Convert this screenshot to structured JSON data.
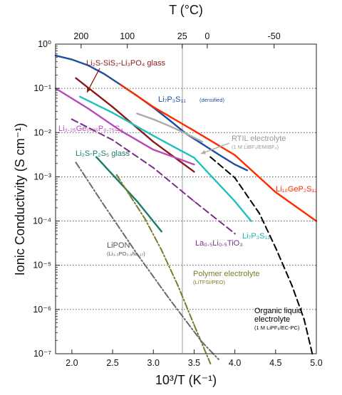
{
  "chart_data": {
    "type": "line",
    "xlabel": "10³/T (K⁻¹)",
    "ylabel": "Ionic Conductivity (S cm⁻¹)",
    "top_axis_label": "T (°C)",
    "xlim": [
      1.8,
      5.0
    ],
    "ylim_log10": [
      -7,
      0
    ],
    "y_scale": "log",
    "grid": "horizontal dotted",
    "x_ticks": [
      "2.0",
      "2.5",
      "3.0",
      "3.5",
      "4.0",
      "4.5",
      "5.0"
    ],
    "x_tick_values": [
      2.0,
      2.5,
      3.0,
      3.5,
      4.0,
      4.5,
      5.0
    ],
    "y_ticks": [
      "10⁰",
      "10⁻¹",
      "10⁻²",
      "10⁻³",
      "10⁻⁴",
      "10⁻⁵",
      "10⁻⁶",
      "10⁻⁷"
    ],
    "y_tick_exponents": [
      0,
      -1,
      -2,
      -3,
      -4,
      -5,
      -6,
      -7
    ],
    "top_ticks": [
      "200",
      "100",
      "25",
      "0",
      "-50"
    ],
    "top_tick_celsius": [
      200,
      100,
      25,
      0,
      -50
    ],
    "reference_line_x": 3.356,
    "series": [
      {
        "name": "Li₇P₃S₁₁ (densified)",
        "color": "#1f4e9e",
        "style": "solid",
        "x": [
          1.8,
          2.0,
          2.2,
          2.4,
          2.6,
          2.8,
          3.0,
          3.2,
          3.4,
          3.6,
          3.8,
          4.0,
          4.15
        ],
        "y": [
          0.55,
          0.45,
          0.33,
          0.21,
          0.12,
          0.068,
          0.037,
          0.019,
          0.0095,
          0.0055,
          0.0032,
          0.0019,
          0.0014
        ]
      },
      {
        "name": "Li₂S-SiS₂-Li₃PO₄ glass",
        "color": "#8b1a1a",
        "style": "solid",
        "x": [
          2.05,
          2.5,
          3.0,
          3.5
        ],
        "y": [
          0.17,
          0.038,
          0.0062,
          0.0013
        ]
      },
      {
        "name": "Li₁₀GeP₂S₁₂",
        "color": "#ff2a00",
        "style": "solid",
        "x": [
          2.6,
          3.0,
          3.5,
          4.0,
          4.5,
          5.0
        ],
        "y": [
          0.12,
          0.038,
          0.011,
          0.0031,
          0.00045,
          0.0001
        ]
      },
      {
        "name": "Li₃.₂₅Ge₀.₂₅P₀.₇₅S₄",
        "color": "#b64ab8",
        "style": "solid",
        "x": [
          1.8,
          2.2,
          2.6,
          3.0,
          3.5
        ],
        "y": [
          0.1,
          0.035,
          0.011,
          0.0041,
          0.0019
        ]
      },
      {
        "name": "Li₇P₃S₁₁",
        "color": "#1fc0c0",
        "style": "solid",
        "x": [
          2.1,
          2.5,
          3.0,
          3.5,
          4.0,
          4.2
        ],
        "y": [
          0.065,
          0.028,
          0.0085,
          0.0027,
          0.00028,
          0.0001
        ]
      },
      {
        "name": "Li₂S-P₂S₅ glass",
        "color": "#1b7a6e",
        "style": "solid",
        "x": [
          2.3,
          2.8,
          3.1
        ],
        "y": [
          0.0028,
          0.00028,
          5.8e-05
        ]
      },
      {
        "name": "La₀.₅Li₀.₅TiO₃",
        "color": "#7a2c8a",
        "style": "dashed",
        "x": [
          2.0,
          2.5,
          3.0,
          3.5,
          4.0
        ],
        "y": [
          0.02,
          0.0068,
          0.0016,
          0.00028,
          5.2e-05
        ]
      },
      {
        "name": "RTIL electrolyte",
        "color": "#aaaaaa",
        "style": "solid",
        "x": [
          2.8,
          3.0,
          3.2,
          3.4,
          3.6
        ],
        "y": [
          0.027,
          0.02,
          0.014,
          0.0095,
          0.0062
        ]
      },
      {
        "name": "Polymer electrolyte",
        "color": "#7c7a2a",
        "style": "dashdot",
        "x": [
          2.55,
          2.7,
          2.9,
          3.1,
          3.3,
          3.5,
          3.7
        ],
        "y": [
          0.0011,
          0.00041,
          0.00011,
          2.2e-05,
          3.5e-06,
          4.5e-07,
          6e-08
        ]
      },
      {
        "name": "LiPON",
        "color": "#6a6a6a",
        "style": "dashdot",
        "x": [
          2.05,
          2.4,
          2.8,
          3.2,
          3.6,
          3.8
        ],
        "y": [
          0.0021,
          0.00022,
          1.8e-05,
          1.7e-06,
          1.8e-07,
          7.5e-08
        ]
      },
      {
        "name": "Organic liquid electrolyte",
        "color": "#000000",
        "style": "dashed",
        "x": [
          3.7,
          4.0,
          4.3,
          4.5,
          4.7,
          4.85,
          4.95
        ],
        "y": [
          0.0028,
          0.00095,
          0.00015,
          2.5e-05,
          3.5e-06,
          6e-07,
          1e-07
        ]
      }
    ],
    "annotations": [
      {
        "text": "Li₂S-SiS₂-Li₃PO₄ glass",
        "color": "#8b1a1a"
      },
      {
        "text": "Li₇P₃S₁₁",
        "sub": "(densified)",
        "color": "#1f4e9e"
      },
      {
        "text": "Li₃.₂₅Ge₀.₂₅P₀.₇₅S₄",
        "color": "#b64ab8"
      },
      {
        "text": "RTIL electrolyte",
        "sub": "(1 M LiBF₄/EMIBF₄)",
        "color": "#999999"
      },
      {
        "text": "Li₂S-P₂S₅ glass",
        "color": "#1b7a6e"
      },
      {
        "text": "Li₁₀GeP₂S₁₂",
        "color": "#ff2a00"
      },
      {
        "text": "Li₇P₃S₁₁",
        "color": "#18b0b0"
      },
      {
        "text": "La₀.₅Li₀.₅TiO₃",
        "color": "#7a2c8a"
      },
      {
        "text": "LiPON",
        "sub": "(Li₃.₃PO₃.₉N₀.₁₇)",
        "color": "#555555"
      },
      {
        "text": "Polymer electrolyte",
        "sub": "(LiTFSI/PEO)",
        "color": "#7c7a2a"
      },
      {
        "text": "Organic liquid",
        "text2": "electrolyte",
        "sub": "(1 M LiPF₆/EC-PC)",
        "color": "#000000"
      }
    ]
  }
}
